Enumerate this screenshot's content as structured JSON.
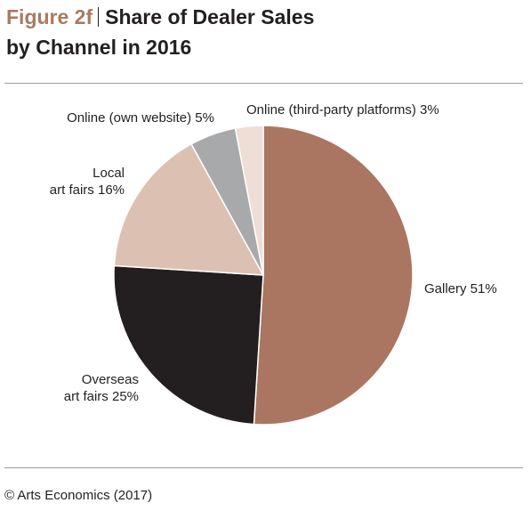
{
  "figure_label": "Figure 2f",
  "title_line1": "Share of Dealer Sales",
  "title_line2": "by Channel in 2016",
  "source": "© Arts Economics (2017)",
  "chart_data": {
    "type": "pie",
    "title": "Share of Dealer Sales by Channel in 2016",
    "unit": "%",
    "slices": [
      {
        "label": "Gallery",
        "value": 51,
        "color": "#aa7662",
        "label_lines": [
          "Gallery 51%"
        ]
      },
      {
        "label": "Overseas art fairs",
        "value": 25,
        "color": "#231f20",
        "label_lines": [
          "Overseas",
          "art fairs 25%"
        ]
      },
      {
        "label": "Local art fairs",
        "value": 16,
        "color": "#dcc1b2",
        "label_lines": [
          "Local",
          "art fairs 16%"
        ]
      },
      {
        "label": "Online (own website)",
        "value": 5,
        "color": "#a8a9ab",
        "label_lines": [
          "Online (own website) 5%"
        ]
      },
      {
        "label": "Online (third-party platforms)",
        "value": 3,
        "color": "#eeded6",
        "label_lines": [
          "Online (third-party platforms) 3%"
        ]
      }
    ]
  }
}
